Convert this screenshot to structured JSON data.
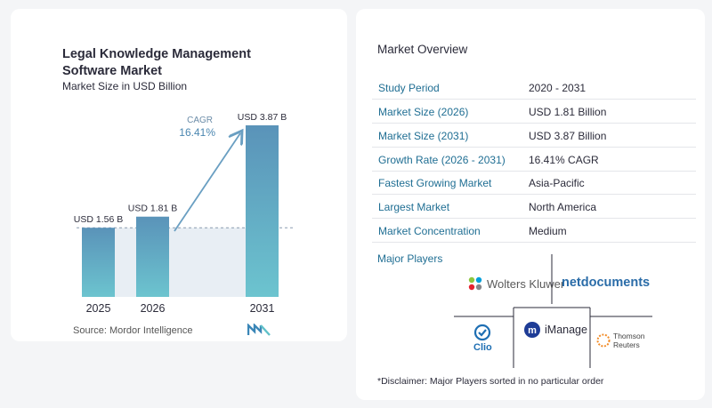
{
  "chart": {
    "title": "Legal Knowledge Management Software Market",
    "subtitle": "Market Size in USD Billion",
    "cagr_label": "CAGR",
    "cagr_value": "16.41%",
    "source": "Source:  Mordor Intelligence"
  },
  "chart_data": {
    "type": "bar",
    "categories": [
      "2025",
      "2026",
      "2031"
    ],
    "values": [
      1.56,
      1.81,
      3.87
    ],
    "value_labels": [
      "USD 1.56 B",
      "USD 1.81 B",
      "USD 3.87 B"
    ],
    "title": "Legal Knowledge Management Software Market",
    "subtitle": "Market Size in USD Billion",
    "ylim": [
      0,
      3.87
    ],
    "annotation": "CAGR 16.41%",
    "colors": {
      "bar_top": "#5a93b9",
      "bar_bottom": "#6cc4cf",
      "arrow": "#6a9fc2",
      "shade": "#e8eef4"
    }
  },
  "overview": {
    "title": "Market Overview",
    "rows": [
      {
        "label": "Study Period",
        "value": "2020 - 2031"
      },
      {
        "label": "Market Size (2026)",
        "value": "USD 1.81 Billion"
      },
      {
        "label": "Market Size (2031)",
        "value": "USD 3.87 Billion"
      },
      {
        "label": "Growth Rate (2026 - 2031)",
        "value": "16.41% CAGR"
      },
      {
        "label": "Fastest Growing Market",
        "value": "Asia-Pacific"
      },
      {
        "label": "Largest Market",
        "value": "North America"
      },
      {
        "label": "Market Concentration",
        "value": "Medium"
      }
    ]
  },
  "players": {
    "title": "Major Players",
    "names": [
      "Wolters Kluwer",
      "netdocuments",
      "Clio",
      "iManage",
      "Thomson Reuters"
    ],
    "thomson_lines": [
      "Thomson",
      "Reuters"
    ],
    "disclaimer": "*Disclaimer: Major Players sorted in no particular order"
  }
}
